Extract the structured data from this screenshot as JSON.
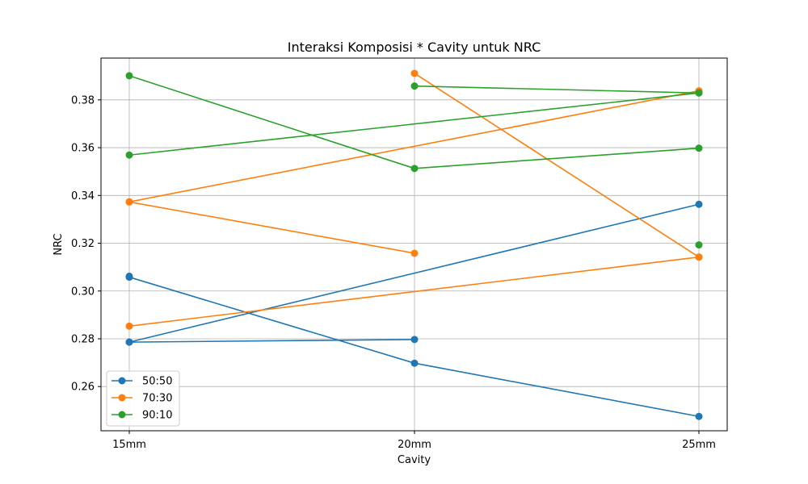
{
  "chart_data": {
    "type": "line",
    "title": "Interaksi Komposisi * Cavity untuk NRC",
    "xlabel": "Cavity",
    "ylabel": "NRC",
    "categories": [
      "15mm",
      "20mm",
      "25mm"
    ],
    "ylim": [
      0.2415,
      0.3975
    ],
    "yticks": [
      "0.26",
      "0.28",
      "0.30",
      "0.32",
      "0.34",
      "0.36",
      "0.38"
    ],
    "grid": true,
    "legend_position": "lower-left",
    "series": [
      {
        "name": "50:50",
        "color": "#1f77b4",
        "values": [
          0.3058,
          0.2698,
          0.2475
        ]
      },
      {
        "name": "50:50",
        "color": "#1f77b4",
        "values": [
          0.2786,
          0.2797,
          null
        ]
      },
      {
        "name": "50:50",
        "color": "#1f77b4",
        "values": [
          0.2786,
          null,
          0.3363
        ]
      },
      {
        "name": "50:50",
        "color": "#1f77b4",
        "values": [
          0.3062,
          null,
          null
        ]
      },
      {
        "name": "70:30",
        "color": "#ff7f0e",
        "values": [
          0.3373,
          0.3158,
          null
        ]
      },
      {
        "name": "70:30",
        "color": "#ff7f0e",
        "values": [
          0.3373,
          null,
          0.3838
        ]
      },
      {
        "name": "70:30",
        "color": "#ff7f0e",
        "values": [
          null,
          0.3911,
          0.3142
        ]
      },
      {
        "name": "70:30",
        "color": "#ff7f0e",
        "values": [
          0.2853,
          null,
          0.3142
        ]
      },
      {
        "name": "90:10",
        "color": "#2ca02c",
        "values": [
          0.3901,
          0.3513,
          0.3598
        ]
      },
      {
        "name": "90:10",
        "color": "#2ca02c",
        "values": [
          0.3569,
          null,
          0.3829
        ]
      },
      {
        "name": "90:10",
        "color": "#2ca02c",
        "values": [
          null,
          0.3858,
          0.3829
        ]
      },
      {
        "name": "90:10",
        "color": "#2ca02c",
        "values": [
          null,
          null,
          0.3193
        ]
      }
    ],
    "legend": [
      {
        "name": "50:50",
        "color": "#1f77b4"
      },
      {
        "name": "70:30",
        "color": "#ff7f0e"
      },
      {
        "name": "90:10",
        "color": "#2ca02c"
      }
    ]
  }
}
